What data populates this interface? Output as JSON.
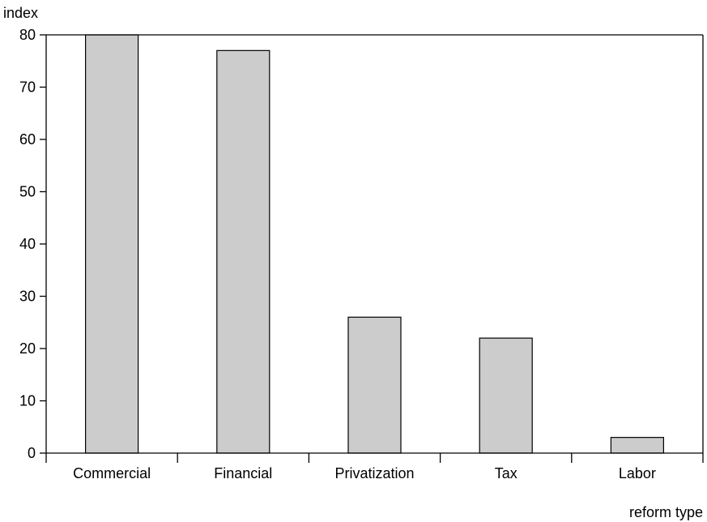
{
  "chart_data": {
    "type": "bar",
    "title": "",
    "ylabel": "index",
    "xlabel": "reform type",
    "categories": [
      "Commercial",
      "Financial",
      "Privatization",
      "Tax",
      "Labor"
    ],
    "values": [
      80,
      77,
      26,
      22,
      3
    ],
    "ylim": [
      0,
      80
    ],
    "yticks": [
      0,
      10,
      20,
      30,
      40,
      50,
      60,
      70,
      80
    ],
    "grid": false,
    "bar_color": "#cccccc",
    "bar_stroke": "#000000"
  }
}
